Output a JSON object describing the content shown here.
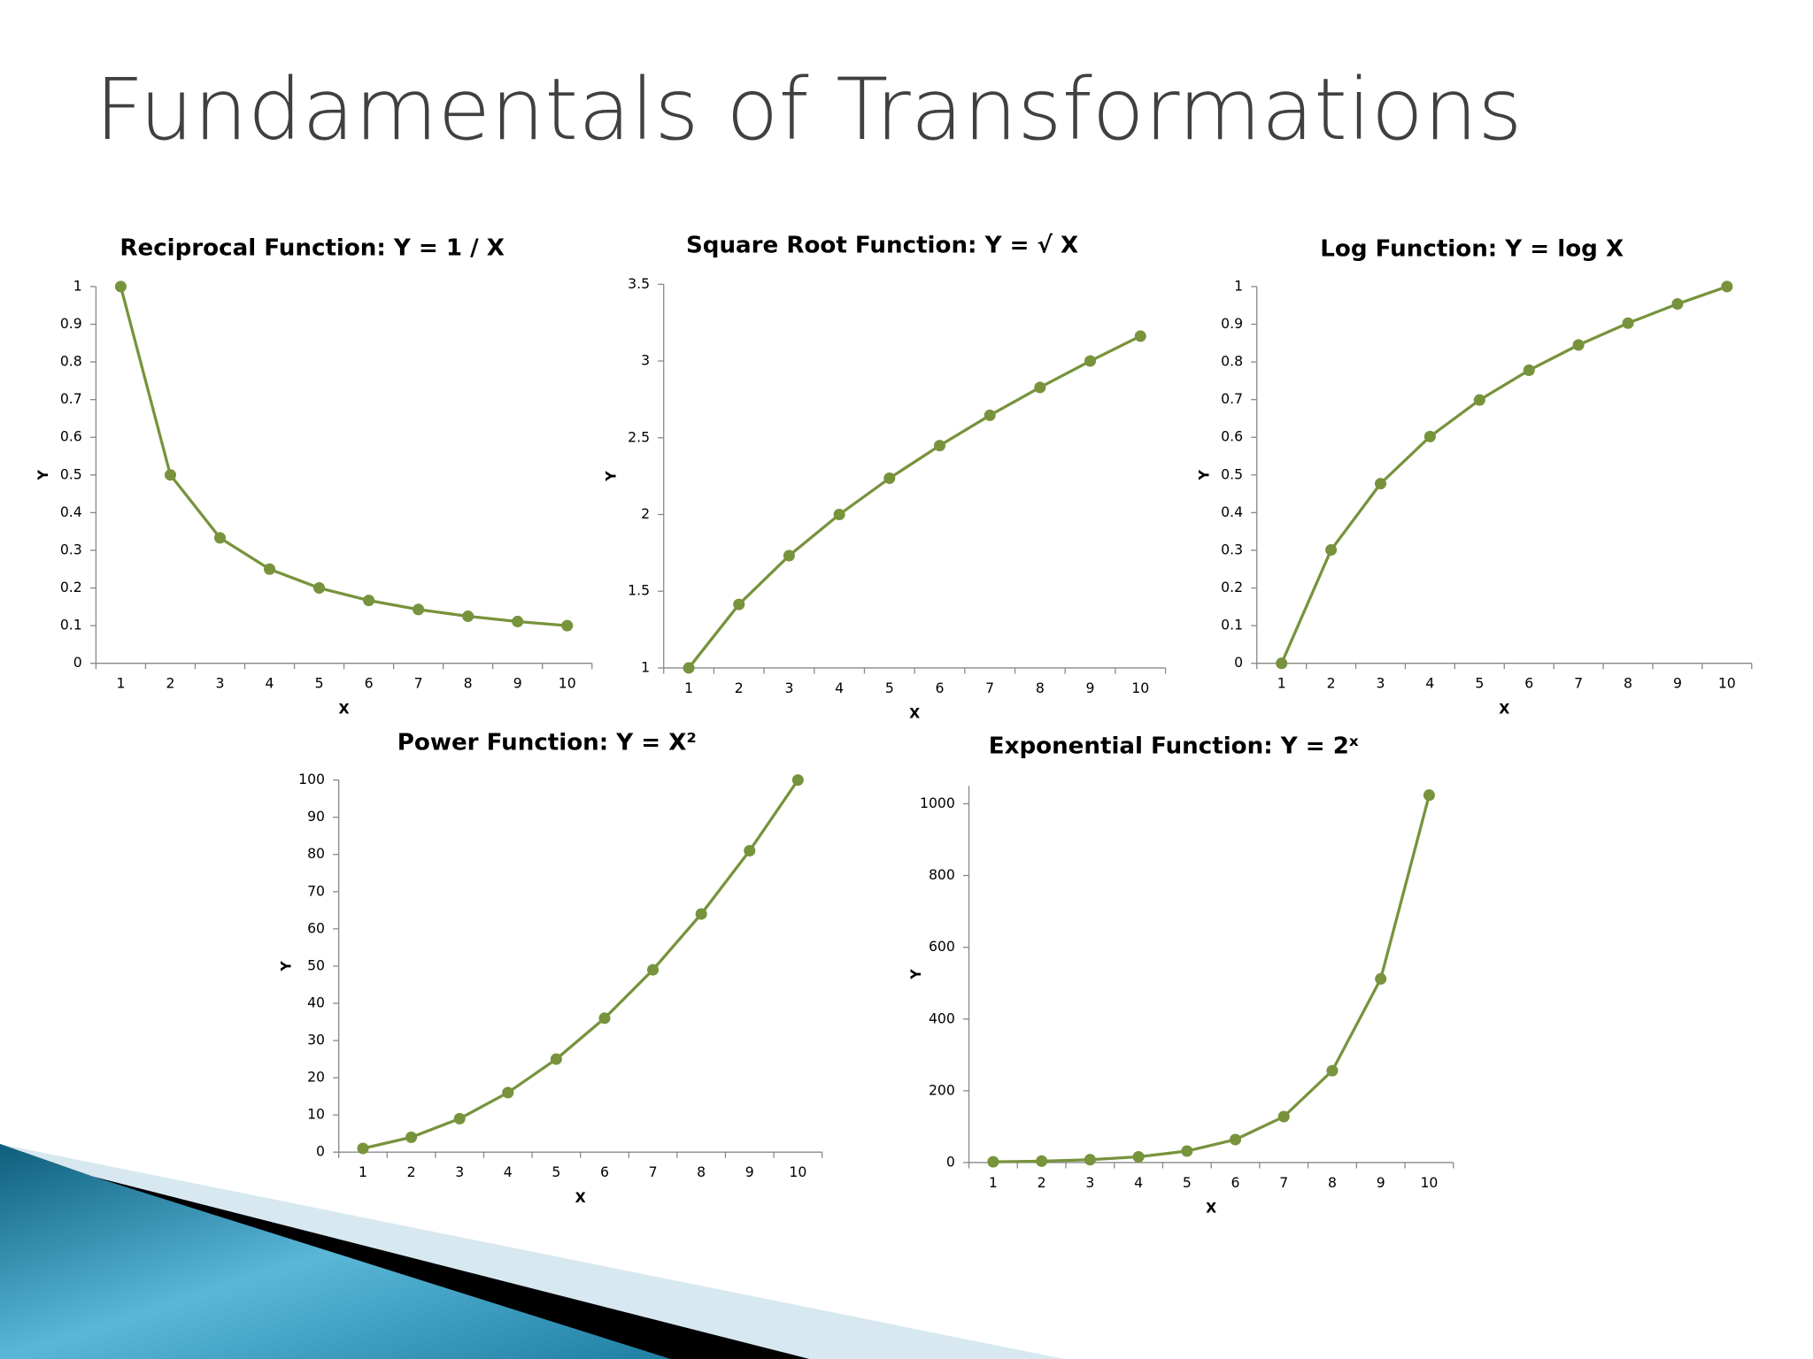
{
  "title": "Fundamentals of Transformations",
  "chart_data": [
    {
      "type": "line",
      "title": "Reciprocal Function: Y = 1 / X",
      "xlabel": "X",
      "ylabel": "Y",
      "color": "#77933c",
      "categories": [
        1,
        2,
        3,
        4,
        5,
        6,
        7,
        8,
        9,
        10
      ],
      "values": [
        1,
        0.5,
        0.333,
        0.25,
        0.2,
        0.167,
        0.143,
        0.125,
        0.111,
        0.1
      ],
      "ylim": [
        0,
        1
      ],
      "yticks": [
        0,
        0.1,
        0.2,
        0.3,
        0.4,
        0.5,
        0.6,
        0.7,
        0.8,
        0.9,
        1
      ]
    },
    {
      "type": "line",
      "title": "Square Root Function: Y = √ X",
      "xlabel": "X",
      "ylabel": "Y",
      "color": "#77933c",
      "categories": [
        1,
        2,
        3,
        4,
        5,
        6,
        7,
        8,
        9,
        10
      ],
      "values": [
        1,
        1.414,
        1.732,
        2,
        2.236,
        2.449,
        2.646,
        2.828,
        3,
        3.162
      ],
      "ylim": [
        1,
        3.5
      ],
      "yticks": [
        1,
        1.5,
        2,
        2.5,
        3,
        3.5
      ]
    },
    {
      "type": "line",
      "title": "Log Function: Y =  log X",
      "xlabel": "X",
      "ylabel": "Y",
      "color": "#77933c",
      "categories": [
        1,
        2,
        3,
        4,
        5,
        6,
        7,
        8,
        9,
        10
      ],
      "values": [
        0,
        0.301,
        0.477,
        0.602,
        0.699,
        0.778,
        0.845,
        0.903,
        0.954,
        1
      ],
      "ylim": [
        0,
        1
      ],
      "yticks": [
        0,
        0.1,
        0.2,
        0.3,
        0.4,
        0.5,
        0.6,
        0.7,
        0.8,
        0.9,
        1
      ]
    },
    {
      "type": "line",
      "title": "Power Function: Y = X²",
      "xlabel": "X",
      "ylabel": "Y",
      "color": "#77933c",
      "categories": [
        1,
        2,
        3,
        4,
        5,
        6,
        7,
        8,
        9,
        10
      ],
      "values": [
        1,
        4,
        9,
        16,
        25,
        36,
        49,
        64,
        81,
        100
      ],
      "ylim": [
        0,
        100
      ],
      "yticks": [
        0,
        10,
        20,
        30,
        40,
        50,
        60,
        70,
        80,
        90,
        100
      ]
    },
    {
      "type": "line",
      "title": "Exponential Function: Y = 2ˣ",
      "xlabel": "X",
      "ylabel": "Y",
      "color": "#77933c",
      "categories": [
        1,
        2,
        3,
        4,
        5,
        6,
        7,
        8,
        9,
        10
      ],
      "values": [
        2,
        4,
        8,
        16,
        32,
        64,
        128,
        256,
        512,
        1024
      ],
      "ylim": [
        0,
        1050
      ],
      "yticks": [
        0,
        200,
        400,
        600,
        800,
        1000
      ]
    }
  ]
}
